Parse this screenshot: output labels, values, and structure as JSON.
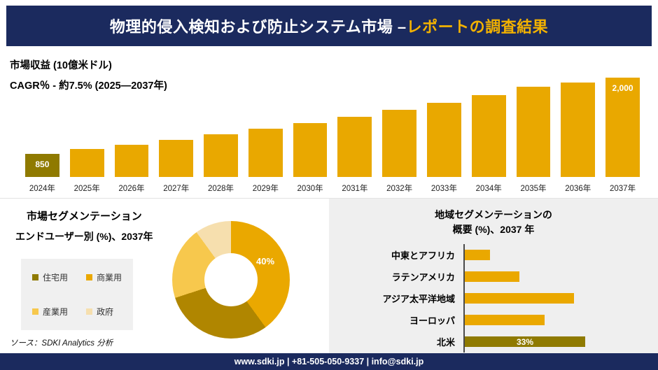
{
  "header": {
    "title_main": "物理的侵入検知および防止システム市場 –",
    "title_accent": "レポートの調査結果"
  },
  "revenue": {
    "title": "市場収益 (10億米ドル)",
    "cagr": "CAGR％ - 約7.5% (2025―2037年)"
  },
  "segmentation": {
    "title": "市場セグメンテーション",
    "subtitle": "エンドユーザー別 (%)、2037年",
    "source": "ソース：SDKI Analytics 分析"
  },
  "region": {
    "title_line1": "地域セグメンテーションの",
    "title_line2": "概要 (%)、2037 年"
  },
  "footer": {
    "text": "www.sdki.jp | +81-505-050-9337 | info@sdki.jp"
  },
  "colors": {
    "navy": "#1b2a5e",
    "gold": "#e9a800",
    "dark_gold": "#8f7a00",
    "light_gold": "#f7c84d",
    "pale_gold": "#f6dfae",
    "panel_gray": "#efefef"
  },
  "chart_data": [
    {
      "type": "bar",
      "title": "市場収益 (10億米ドル)",
      "subtitle": "CAGR％ - 約7.5% (2025―2037年)",
      "categories": [
        "2024年",
        "2025年",
        "2026年",
        "2027年",
        "2028年",
        "2029年",
        "2030年",
        "2031年",
        "2032年",
        "2033年",
        "2034年",
        "2035年",
        "2036年",
        "2037年"
      ],
      "values": [
        850,
        920,
        990,
        1060,
        1140,
        1225,
        1315,
        1410,
        1510,
        1620,
        1735,
        1860,
        1930,
        2000
      ],
      "labeled_bars": [
        {
          "index": 0,
          "label": "850"
        },
        {
          "index": 13,
          "label": "2,000"
        }
      ],
      "ylim": [
        0,
        2100
      ],
      "xlabel": "",
      "ylabel": "市場収益 (10億米ドル)"
    },
    {
      "type": "pie",
      "title": "市場セグメンテーション",
      "subtitle": "エンドユーザー別 (%)、2037年",
      "segments": [
        {
          "label": "商業用",
          "value": 40,
          "color": "#eaa800"
        },
        {
          "label": "住宅用",
          "value": 30,
          "color": "#b08600"
        },
        {
          "label": "産業用",
          "value": 20,
          "color": "#f7c84d"
        },
        {
          "label": "政府",
          "value": 10,
          "color": "#f6dfae"
        }
      ],
      "legend": [
        {
          "label": "住宅用",
          "color": "#8f7a00"
        },
        {
          "label": "商業用",
          "color": "#eaa800"
        },
        {
          "label": "産業用",
          "color": "#f7c84d"
        },
        {
          "label": "政府",
          "color": "#f6dfae"
        }
      ],
      "callout": "40%"
    },
    {
      "type": "bar-horizontal",
      "title": "地域セグメンテーションの概要 (%)、2037 年",
      "categories": [
        "中東とアフリカ",
        "ラテンアメリカ",
        "アジア太平洋地域",
        "ヨーロッパ",
        "北米"
      ],
      "values": [
        7,
        15,
        30,
        22,
        33
      ],
      "colors": [
        "#eaa800",
        "#eaa800",
        "#eaa800",
        "#eaa800",
        "#8f7a00"
      ],
      "annotations": [
        null,
        null,
        null,
        null,
        "33%"
      ],
      "xlim": [
        0,
        35
      ]
    }
  ]
}
